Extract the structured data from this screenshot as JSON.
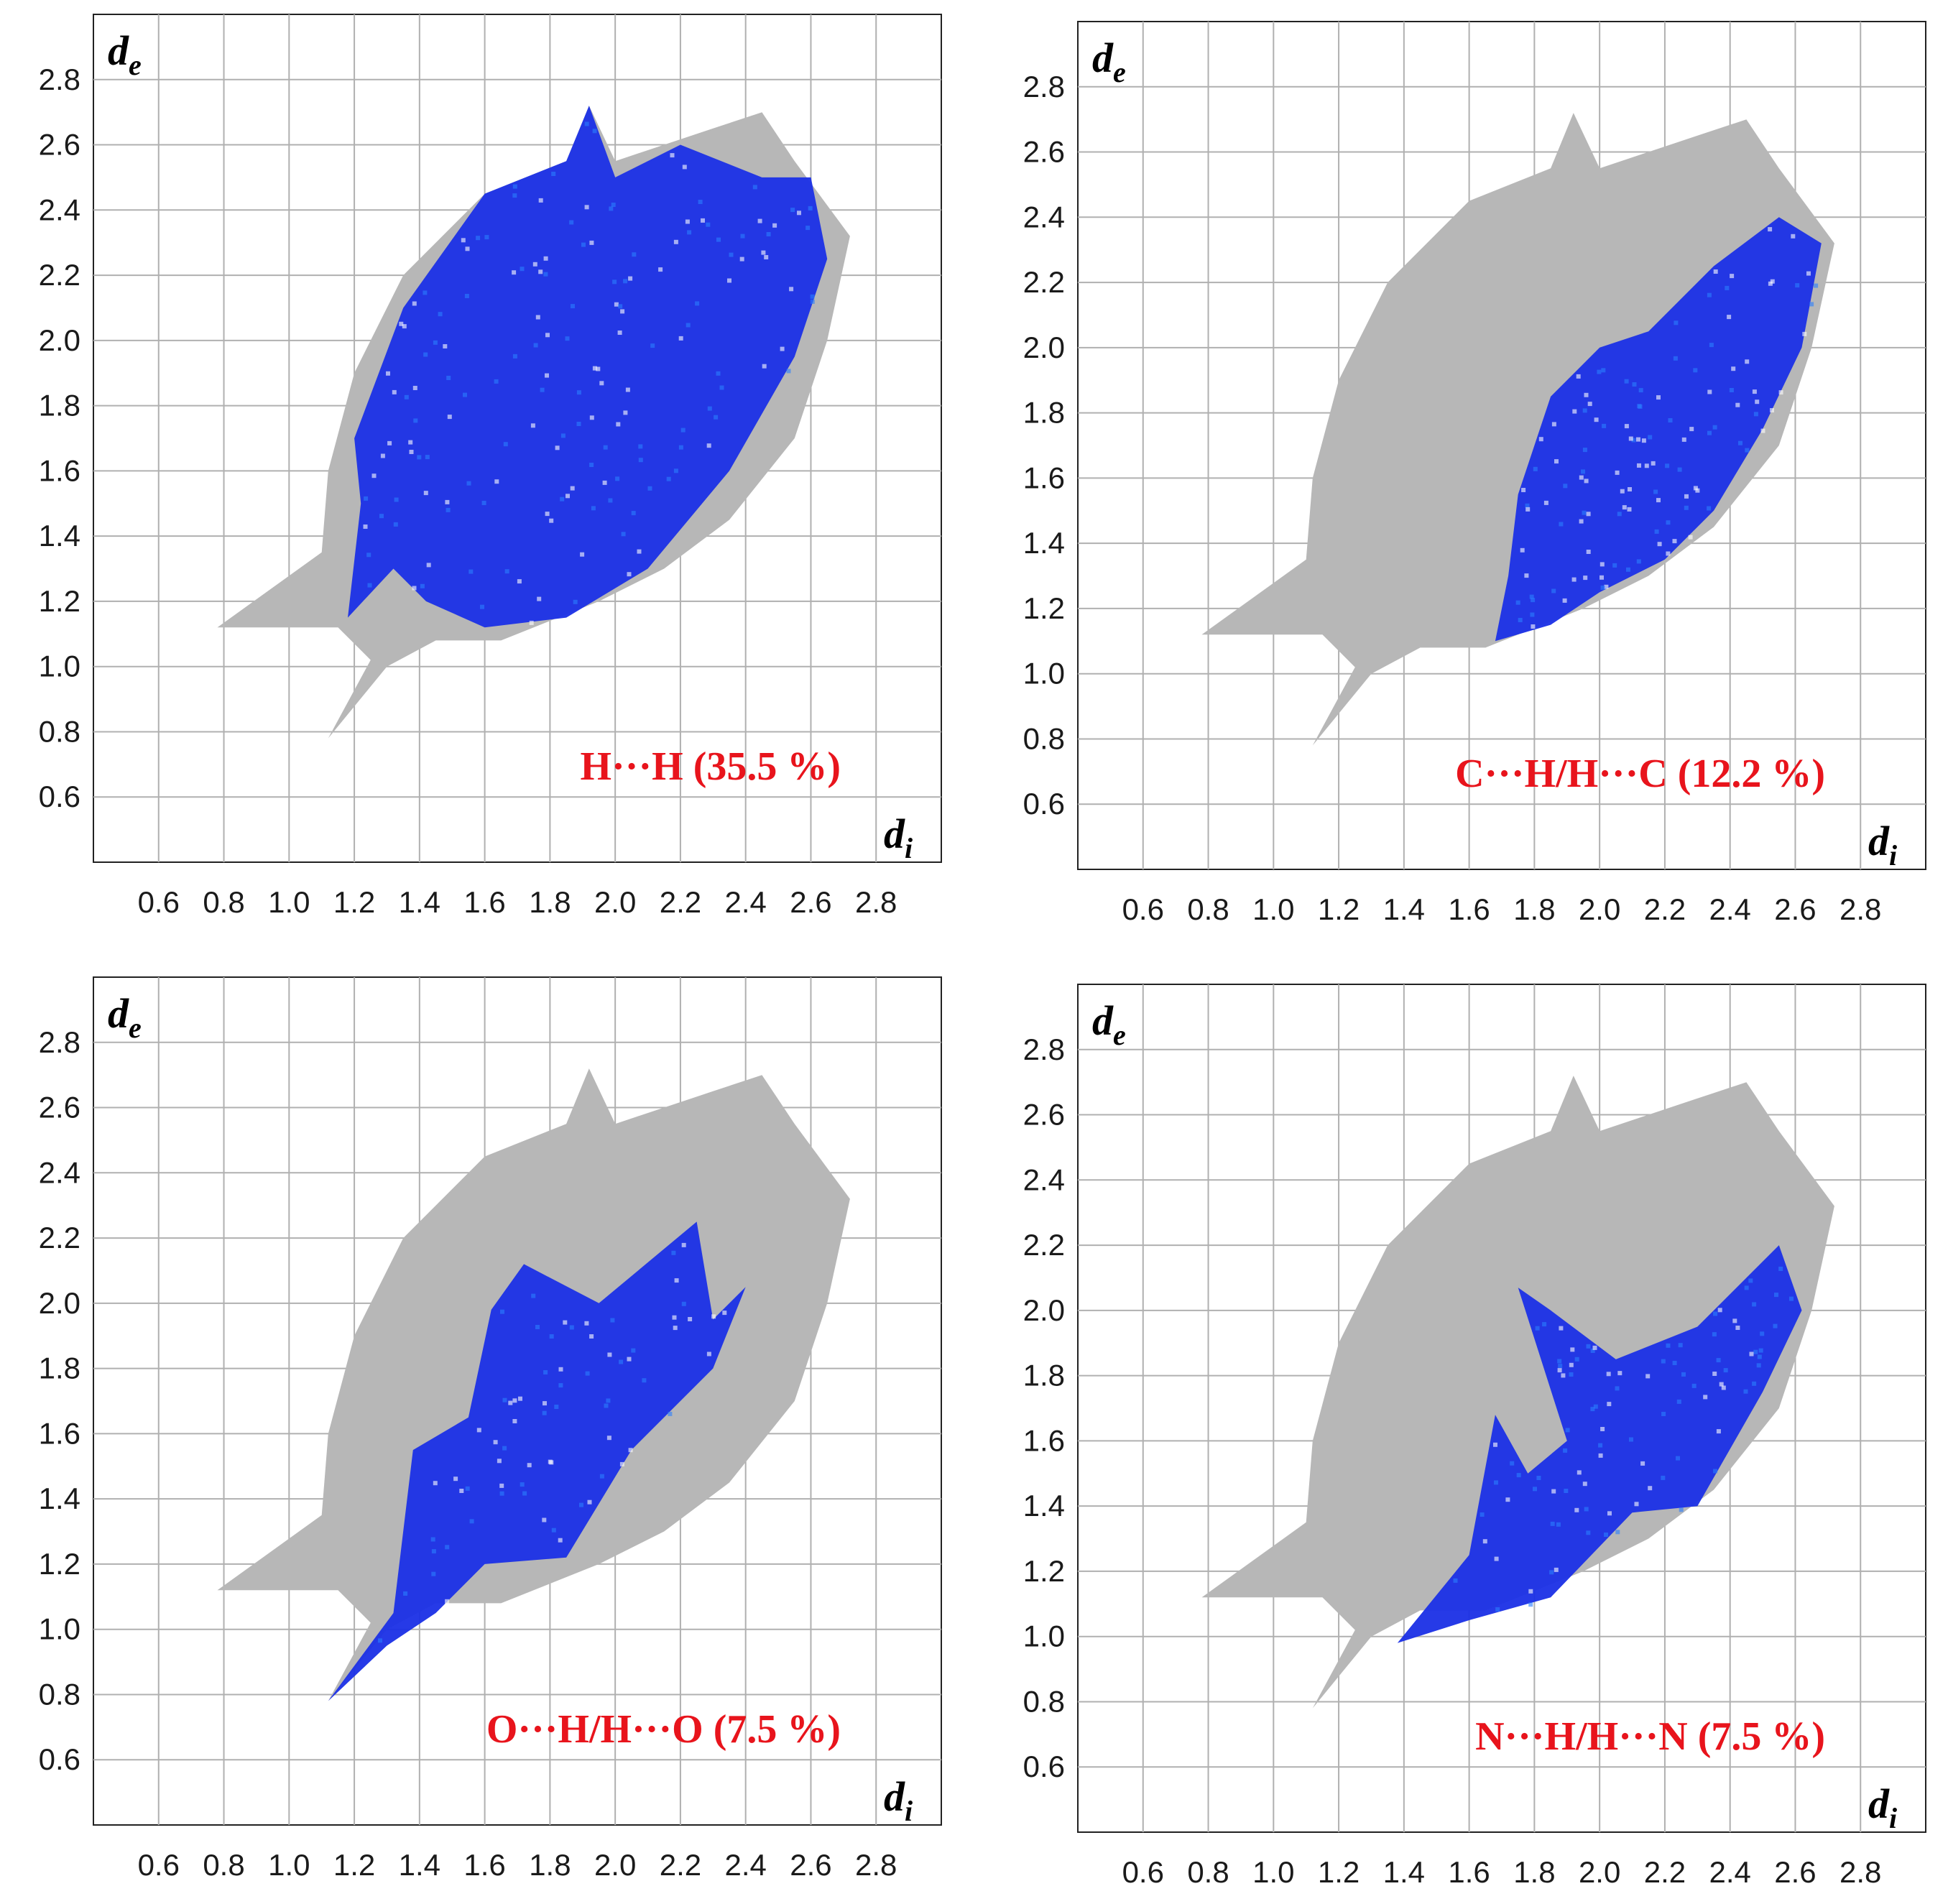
{
  "colors": {
    "fingerprint": "#b7b7b7",
    "highlight": "#1a2fe6",
    "highlight_dense": "#2a7fff",
    "annotation": "#e8141c",
    "grid": "#b0b0b0",
    "frame": "#222222"
  },
  "chart_data": [
    {
      "type": "scatter",
      "title": "H···H (35.5 %)",
      "xlabel": "d",
      "xlabel_sub": "i",
      "ylabel": "d",
      "ylabel_sub": "e",
      "xlim": [
        0.4,
        3.0
      ],
      "ylim": [
        0.4,
        3.0
      ],
      "xticks": [
        "0.6",
        "0.8",
        "1.0",
        "1.2",
        "1.4",
        "1.6",
        "1.8",
        "2.0",
        "2.2",
        "2.4",
        "2.6",
        "2.8"
      ],
      "yticks": [
        "0.6",
        "0.8",
        "1.0",
        "1.2",
        "1.4",
        "1.6",
        "1.8",
        "2.0",
        "2.2",
        "2.4",
        "2.6",
        "2.8"
      ],
      "highlight_region": [
        [
          1.18,
          1.15
        ],
        [
          1.22,
          1.5
        ],
        [
          1.2,
          1.7
        ],
        [
          1.35,
          2.1
        ],
        [
          1.6,
          2.45
        ],
        [
          1.85,
          2.55
        ],
        [
          1.92,
          2.72
        ],
        [
          2.0,
          2.5
        ],
        [
          2.2,
          2.6
        ],
        [
          2.45,
          2.5
        ],
        [
          2.6,
          2.5
        ],
        [
          2.65,
          2.25
        ],
        [
          2.55,
          1.95
        ],
        [
          2.35,
          1.6
        ],
        [
          2.1,
          1.3
        ],
        [
          1.85,
          1.15
        ],
        [
          1.6,
          1.12
        ],
        [
          1.42,
          1.2
        ],
        [
          1.32,
          1.3
        ]
      ]
    },
    {
      "type": "scatter",
      "title": "C···H/H···C (12.2 %)",
      "xlabel": "d",
      "xlabel_sub": "i",
      "ylabel": "d",
      "ylabel_sub": "e",
      "xlim": [
        0.4,
        3.0
      ],
      "ylim": [
        0.4,
        3.0
      ],
      "xticks": [
        "0.6",
        "0.8",
        "1.0",
        "1.2",
        "1.4",
        "1.6",
        "1.8",
        "2.0",
        "2.2",
        "2.4",
        "2.6",
        "2.8"
      ],
      "yticks": [
        "0.6",
        "0.8",
        "1.0",
        "1.2",
        "1.4",
        "1.6",
        "1.8",
        "2.0",
        "2.2",
        "2.4",
        "2.6",
        "2.8"
      ],
      "highlight_region": [
        [
          1.68,
          1.1
        ],
        [
          1.72,
          1.3
        ],
        [
          1.75,
          1.55
        ],
        [
          1.85,
          1.85
        ],
        [
          2.0,
          2.0
        ],
        [
          2.15,
          2.05
        ],
        [
          2.35,
          2.25
        ],
        [
          2.55,
          2.4
        ],
        [
          2.68,
          2.32
        ],
        [
          2.62,
          2.0
        ],
        [
          2.5,
          1.75
        ],
        [
          2.35,
          1.5
        ],
        [
          2.2,
          1.35
        ],
        [
          2.0,
          1.25
        ],
        [
          1.85,
          1.15
        ]
      ]
    },
    {
      "type": "scatter",
      "title": "O···H/H···O (7.5 %)",
      "xlabel": "d",
      "xlabel_sub": "i",
      "ylabel": "d",
      "ylabel_sub": "e",
      "xlim": [
        0.4,
        3.0
      ],
      "ylim": [
        0.4,
        3.0
      ],
      "xticks": [
        "0.6",
        "0.8",
        "1.0",
        "1.2",
        "1.4",
        "1.6",
        "1.8",
        "2.0",
        "2.2",
        "2.4",
        "2.6",
        "2.8"
      ],
      "yticks": [
        "0.6",
        "0.8",
        "1.0",
        "1.2",
        "1.4",
        "1.6",
        "1.8",
        "2.0",
        "2.2",
        "2.4",
        "2.6",
        "2.8"
      ],
      "highlight_region": [
        [
          1.12,
          0.78
        ],
        [
          1.32,
          1.05
        ],
        [
          1.38,
          1.55
        ],
        [
          1.55,
          1.65
        ],
        [
          1.62,
          1.98
        ],
        [
          1.72,
          2.12
        ],
        [
          1.95,
          2.0
        ],
        [
          2.25,
          2.25
        ],
        [
          2.3,
          1.95
        ],
        [
          2.4,
          2.05
        ],
        [
          2.3,
          1.8
        ],
        [
          2.05,
          1.55
        ],
        [
          1.85,
          1.22
        ],
        [
          1.6,
          1.2
        ],
        [
          1.45,
          1.05
        ],
        [
          1.3,
          0.95
        ]
      ]
    },
    {
      "type": "scatter",
      "title": "N···H/H···N (7.5 %)",
      "xlabel": "d",
      "xlabel_sub": "i",
      "ylabel": "d",
      "ylabel_sub": "e",
      "xlim": [
        0.4,
        3.0
      ],
      "ylim": [
        0.4,
        3.0
      ],
      "xticks": [
        "0.6",
        "0.8",
        "1.0",
        "1.2",
        "1.4",
        "1.6",
        "1.8",
        "2.0",
        "2.2",
        "2.4",
        "2.6",
        "2.8"
      ],
      "yticks": [
        "0.6",
        "0.8",
        "1.0",
        "1.2",
        "1.4",
        "1.6",
        "1.8",
        "2.0",
        "2.2",
        "2.4",
        "2.6",
        "2.8"
      ],
      "highlight_region": [
        [
          1.38,
          0.98
        ],
        [
          1.6,
          1.25
        ],
        [
          1.68,
          1.68
        ],
        [
          1.78,
          1.5
        ],
        [
          1.9,
          1.6
        ],
        [
          1.75,
          2.07
        ],
        [
          1.85,
          2.0
        ],
        [
          2.05,
          1.85
        ],
        [
          2.3,
          1.95
        ],
        [
          2.55,
          2.2
        ],
        [
          2.62,
          2.0
        ],
        [
          2.5,
          1.75
        ],
        [
          2.3,
          1.4
        ],
        [
          2.1,
          1.38
        ],
        [
          1.85,
          1.12
        ],
        [
          1.6,
          1.05
        ]
      ]
    }
  ],
  "fingerprint_region": [
    [
      0.78,
      1.12
    ],
    [
      1.1,
      1.35
    ],
    [
      1.12,
      1.6
    ],
    [
      1.2,
      1.9
    ],
    [
      1.35,
      2.2
    ],
    [
      1.6,
      2.45
    ],
    [
      1.85,
      2.55
    ],
    [
      1.92,
      2.72
    ],
    [
      2.0,
      2.55
    ],
    [
      2.3,
      2.65
    ],
    [
      2.45,
      2.7
    ],
    [
      2.55,
      2.55
    ],
    [
      2.72,
      2.32
    ],
    [
      2.65,
      2.0
    ],
    [
      2.55,
      1.7
    ],
    [
      2.35,
      1.45
    ],
    [
      2.15,
      1.3
    ],
    [
      1.95,
      1.2
    ],
    [
      1.65,
      1.08
    ],
    [
      1.45,
      1.08
    ],
    [
      1.3,
      1.0
    ],
    [
      1.12,
      0.78
    ],
    [
      1.25,
      1.02
    ],
    [
      1.15,
      1.12
    ],
    [
      1.0,
      1.12
    ]
  ]
}
